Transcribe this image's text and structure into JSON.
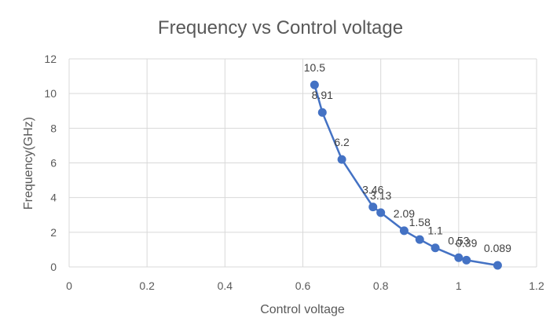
{
  "chart_data": {
    "type": "scatter",
    "title": "Frequency vs Control voltage",
    "xlabel": "Control voltage",
    "ylabel": "Frequency(GHz)",
    "xlim": [
      0,
      1.2
    ],
    "ylim": [
      0,
      12
    ],
    "x_ticks": [
      0,
      0.2,
      0.4,
      0.6,
      0.8,
      1,
      1.2
    ],
    "x_tick_labels": [
      "0",
      "0.2",
      "0.4",
      "0.6",
      "0.8",
      "1",
      "1.2"
    ],
    "y_ticks": [
      0,
      2,
      4,
      6,
      8,
      10,
      12
    ],
    "y_tick_labels": [
      "0",
      "2",
      "4",
      "6",
      "8",
      "10",
      "12"
    ],
    "grid": true,
    "legend": "none",
    "series": [
      {
        "color": "#4472c4",
        "x": [
          0.63,
          0.65,
          0.7,
          0.78,
          0.8,
          0.86,
          0.9,
          0.94,
          1.0,
          1.02,
          1.1
        ],
        "y": [
          10.5,
          8.91,
          6.2,
          3.46,
          3.13,
          2.09,
          1.58,
          1.1,
          0.53,
          0.39,
          0.089
        ],
        "labels": [
          "10.5",
          "8.91",
          "6.2",
          "3.46",
          "3.13",
          "2.09",
          "1.58",
          "1.1",
          "0.53",
          "0.39",
          "0.089"
        ]
      }
    ]
  }
}
